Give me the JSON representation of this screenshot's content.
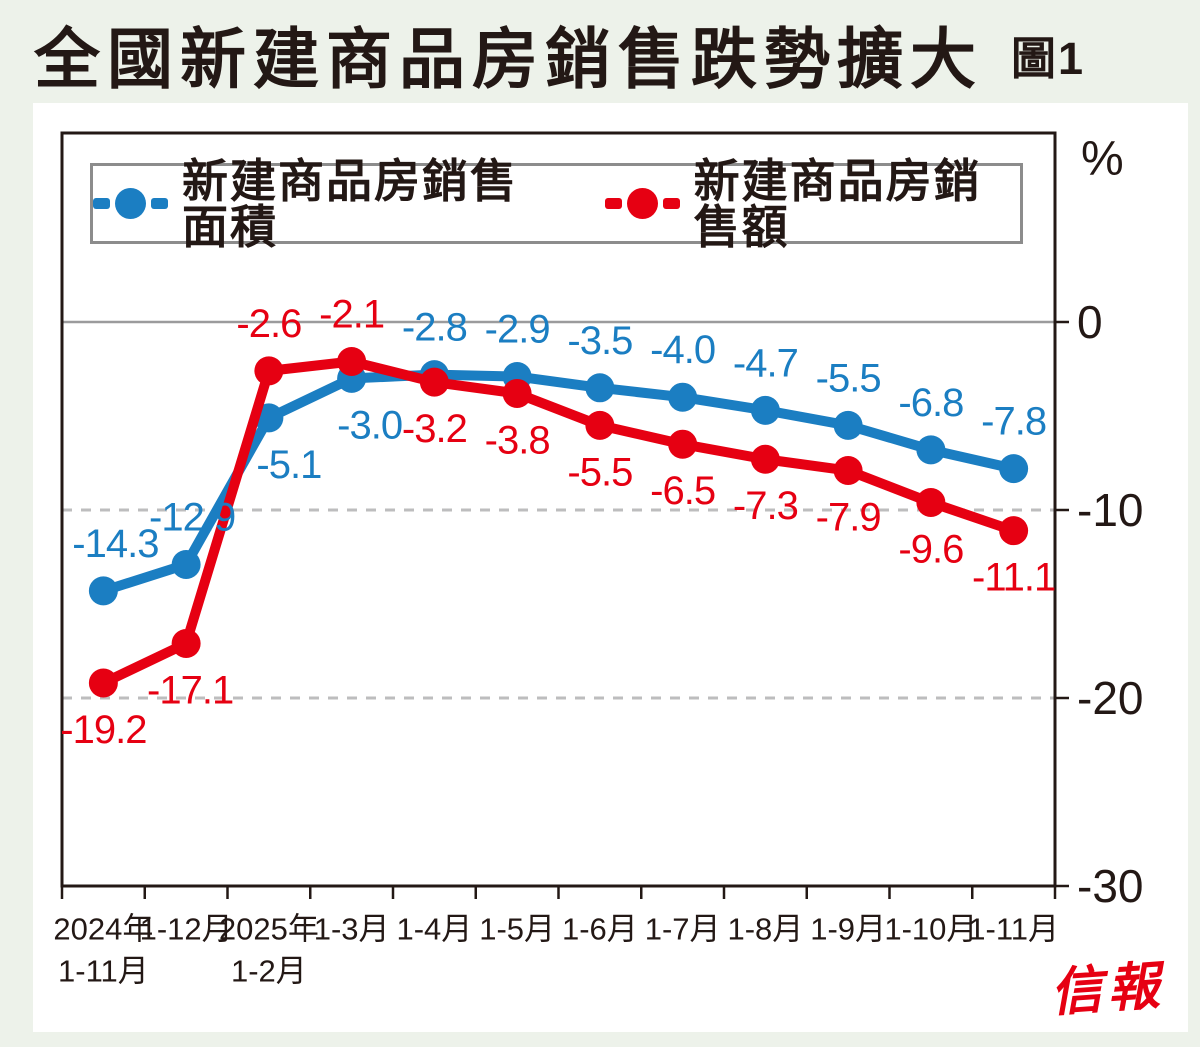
{
  "title": "全國新建商品房銷售跌勢擴大",
  "figure_label": "圖1",
  "brand": "信報",
  "colors": {
    "background": "#edf2ea",
    "card": "#ffffff",
    "ink": "#231815",
    "zero_line": "#9b9b9c",
    "dashed_grid": "#bdbdbe",
    "legend_border": "#8c8c8c",
    "blue": "#1b7ec2",
    "red": "#e60012"
  },
  "chart_data": {
    "type": "line",
    "title": "全國新建商品房銷售跌勢擴大",
    "unit_label": "%",
    "categories": [
      [
        "2024年",
        "1-11月"
      ],
      [
        "1-12月"
      ],
      [
        "2025年",
        "1-2月"
      ],
      [
        "1-3月"
      ],
      [
        "1-4月"
      ],
      [
        "1-5月"
      ],
      [
        "1-6月"
      ],
      [
        "1-7月"
      ],
      [
        "1-8月"
      ],
      [
        "1-9月"
      ],
      [
        "1-10月"
      ],
      [
        "1-11月"
      ]
    ],
    "y_ticks": [
      0,
      -10,
      -20,
      -30
    ],
    "ylim": [
      10,
      -30
    ],
    "grid": {
      "solid_at": 0,
      "dashed_at": [
        -10,
        -20
      ]
    },
    "legend_position": "top-inside",
    "series": [
      {
        "name": "新建商品房銷售面積",
        "color": "#1b7ec2",
        "values": [
          -14.3,
          -12.9,
          -5.1,
          -3.0,
          -2.8,
          -2.9,
          -3.5,
          -4.0,
          -4.7,
          -5.5,
          -6.8,
          -7.8
        ],
        "label_side": [
          "above",
          "above",
          "below",
          "below",
          "above",
          "above",
          "above",
          "above",
          "above",
          "above",
          "above",
          "above"
        ],
        "label_dx": [
          12,
          6,
          20,
          18,
          0,
          0,
          0,
          0,
          0,
          0,
          0,
          0
        ]
      },
      {
        "name": "新建商品房銷售額",
        "color": "#e60012",
        "values": [
          -19.2,
          -17.1,
          -2.6,
          -2.1,
          -3.2,
          -3.8,
          -5.5,
          -6.5,
          -7.3,
          -7.9,
          -9.6,
          -11.1
        ],
        "label_side": [
          "below",
          "below",
          "above",
          "above",
          "below",
          "below",
          "below",
          "below",
          "below",
          "below",
          "below",
          "below"
        ],
        "label_dx": [
          0,
          4,
          0,
          0,
          0,
          0,
          0,
          0,
          0,
          0,
          0,
          0
        ]
      }
    ]
  }
}
